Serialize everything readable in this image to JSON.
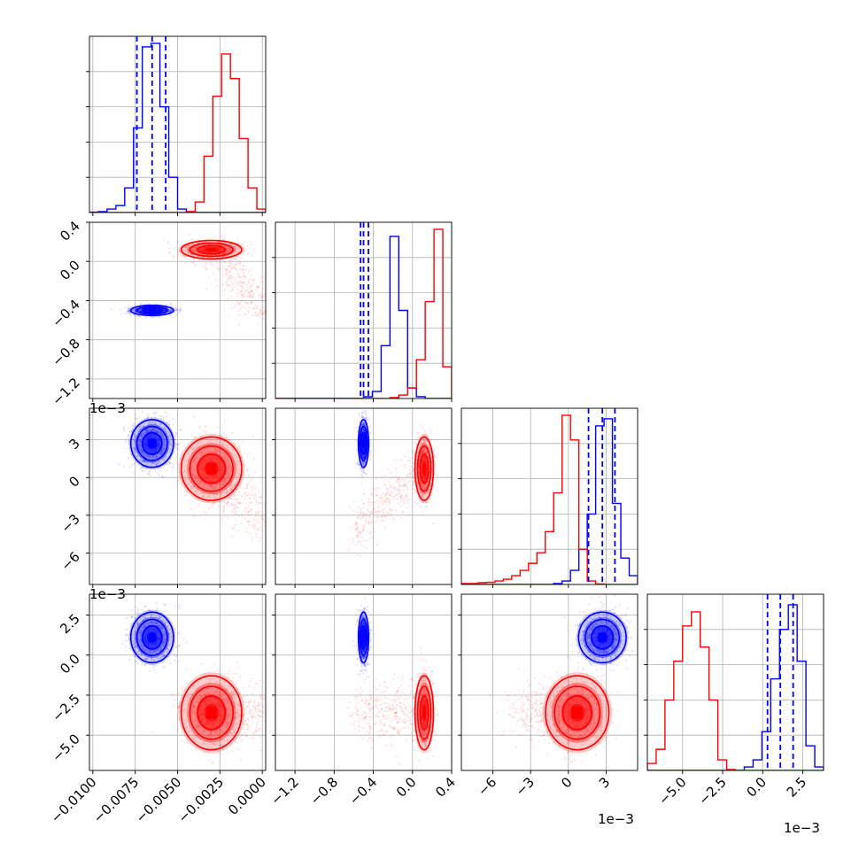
{
  "chart_data": {
    "type": "corner",
    "colors": {
      "series_a": "#0000ff",
      "series_b": "#ff0000",
      "grid": "#b0b0b0"
    },
    "series": [
      {
        "key": "series_a",
        "color": "#0000ff",
        "p0": {
          "median": -0.0065,
          "q16": -0.0074,
          "q84": -0.0057
        },
        "p1": {
          "median": -0.5,
          "q16": -0.53,
          "q84": -0.45
        },
        "p2": {
          "median": 0.0027,
          "q16": 0.0016,
          "q84": 0.0037
        },
        "p3": {
          "median": 0.0011,
          "q16": 0.0003,
          "q84": 0.0019
        },
        "show_quantile_lines": true
      },
      {
        "key": "series_b",
        "color": "#ff0000",
        "p0": {
          "median": -0.003
        },
        "p1": {
          "median": 0.12
        },
        "p2": {
          "median": 0.0007
        },
        "p3": {
          "median": -0.0036
        },
        "show_quantile_lines": false
      }
    ],
    "histograms": [
      {
        "param": 0,
        "bins": [
          -0.0102,
          0.0002
        ],
        "series_a": [
          0.2,
          0.5,
          2,
          4,
          14,
          48,
          94,
          96,
          60,
          20,
          2,
          0.3,
          0,
          0,
          0,
          0,
          0,
          0,
          0,
          0
        ],
        "series_b": [
          0,
          0,
          0,
          0,
          0,
          0,
          0,
          0,
          0,
          0,
          0,
          0.5,
          6,
          32,
          66,
          90,
          76,
          42,
          14,
          2
        ]
      },
      {
        "param": 1,
        "bins": [
          -1.4,
          0.4
        ],
        "series_a": [
          0,
          0,
          0,
          0,
          0,
          0,
          0,
          0,
          0,
          0,
          1,
          4,
          30,
          92,
          50,
          6,
          1,
          0,
          0,
          0
        ],
        "series_b": [
          0,
          0,
          0,
          0,
          0,
          0,
          0,
          0,
          0,
          0,
          0,
          0,
          0,
          0.5,
          2,
          6,
          22,
          55,
          96,
          18
        ]
      },
      {
        "param": 2,
        "bins": [
          -0.0085,
          0.0055
        ],
        "series_a": [
          0,
          0,
          0,
          0,
          0,
          0,
          0,
          0,
          0,
          0,
          0,
          0.5,
          2,
          8,
          20,
          40,
          90,
          94,
          46,
          15,
          5
        ],
        "series_b": [
          0.5,
          0.5,
          1,
          1.2,
          2,
          3,
          5,
          8,
          12,
          18,
          30,
          52,
          96,
          82,
          20,
          2,
          0.3,
          0,
          0,
          0,
          0
        ]
      },
      {
        "param": 3,
        "bins": [
          -0.0072,
          0.0038
        ],
        "series_a": [
          0,
          0,
          0,
          0,
          0,
          0,
          0,
          0,
          0,
          0,
          0,
          2,
          6,
          22,
          52,
          80,
          94,
          62,
          14,
          2
        ],
        "series_b": [
          4,
          12,
          40,
          62,
          82,
          90,
          70,
          40,
          6,
          0.5,
          0,
          0,
          0,
          0,
          0,
          0,
          0,
          0,
          0,
          0
        ]
      }
    ],
    "axes": {
      "p0": {
        "range": [
          -0.0102,
          0.0002
        ],
        "ticks": [
          -0.01,
          -0.0075,
          -0.005,
          -0.0025,
          0.0
        ],
        "labels": [
          "−0.0100",
          "−0.0075",
          "−0.0050",
          "−0.0025",
          "0.0000"
        ]
      },
      "p1": {
        "range": [
          -1.4,
          0.4
        ],
        "ticks": [
          -1.2,
          -0.8,
          -0.4,
          0.0,
          0.4
        ],
        "labels": [
          "−1.2",
          "−0.8",
          "−0.4",
          "0.0",
          "0.4"
        ]
      },
      "p2": {
        "range": [
          -0.0085,
          0.0055
        ],
        "ticks": [
          -0.006,
          -0.003,
          0.0,
          0.003
        ],
        "labels": [
          "−6",
          "−3",
          "0",
          "3"
        ],
        "scale_label": "1e−3"
      },
      "p3": {
        "range": [
          -0.0072,
          0.0038
        ],
        "ticks": [
          -0.005,
          -0.0025,
          0.0,
          0.0025
        ],
        "labels": [
          "−5.0",
          "−2.5",
          "0.0",
          "2.5"
        ],
        "scale_label": "1e−3"
      }
    },
    "contour_levels": 3,
    "grid": true,
    "legend": "none",
    "title": "",
    "xlabel": "",
    "ylabel": ""
  }
}
